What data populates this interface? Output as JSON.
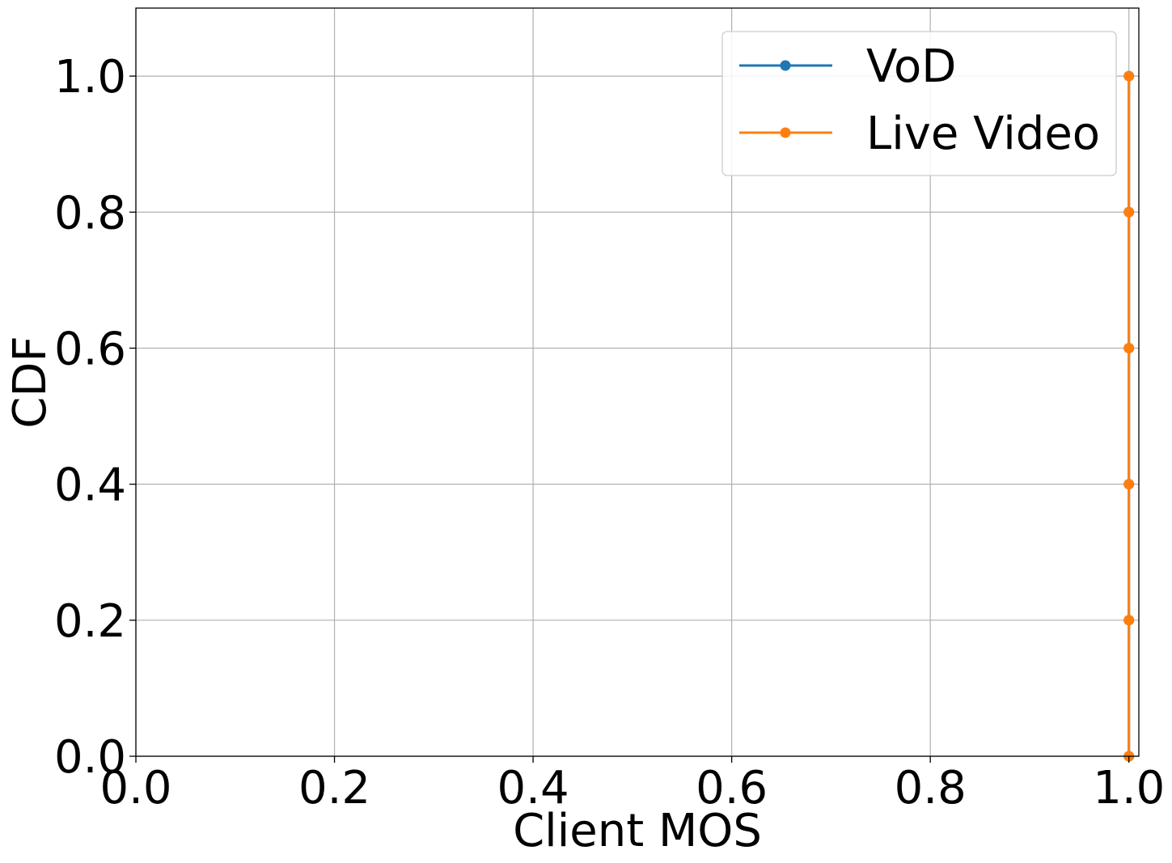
{
  "chart_data": {
    "type": "line",
    "title": "",
    "xlabel": "Client MOS",
    "ylabel": "CDF",
    "xlim": [
      0.0,
      1.01
    ],
    "ylim": [
      0.0,
      1.1
    ],
    "xticks": [
      0.0,
      0.2,
      0.4,
      0.6,
      0.8,
      1.0
    ],
    "xtick_labels": [
      "0.0",
      "0.2",
      "0.4",
      "0.6",
      "0.8",
      "1.0"
    ],
    "yticks": [
      0.0,
      0.2,
      0.4,
      0.6,
      0.8,
      1.0
    ],
    "ytick_labels": [
      "0.0",
      "0.2",
      "0.4",
      "0.6",
      "0.8",
      "1.0"
    ],
    "grid": true,
    "legend_position": "top-right",
    "series": [
      {
        "name": "VoD",
        "color": "#1f77b4",
        "marker": "circle",
        "x": [
          1.0,
          1.0,
          1.0,
          1.0,
          1.0,
          1.0
        ],
        "y": [
          0.0,
          0.2,
          0.4,
          0.6,
          0.8,
          1.0
        ]
      },
      {
        "name": "Live Video",
        "color": "#ff7f0e",
        "marker": "circle",
        "x": [
          1.0,
          1.0,
          1.0,
          1.0,
          1.0,
          1.0
        ],
        "y": [
          0.0,
          0.2,
          0.4,
          0.6,
          0.8,
          1.0
        ]
      }
    ]
  }
}
